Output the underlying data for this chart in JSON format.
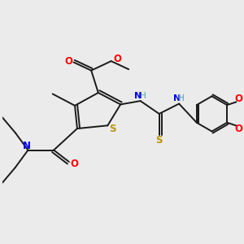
{
  "bg_color": "#ebebeb",
  "bond_color": "#1a1a1a",
  "bond_width": 1.4,
  "figsize": [
    3.0,
    3.0
  ],
  "dpi": 100,
  "xlim": [
    0,
    10
  ],
  "ylim": [
    0,
    10
  ]
}
